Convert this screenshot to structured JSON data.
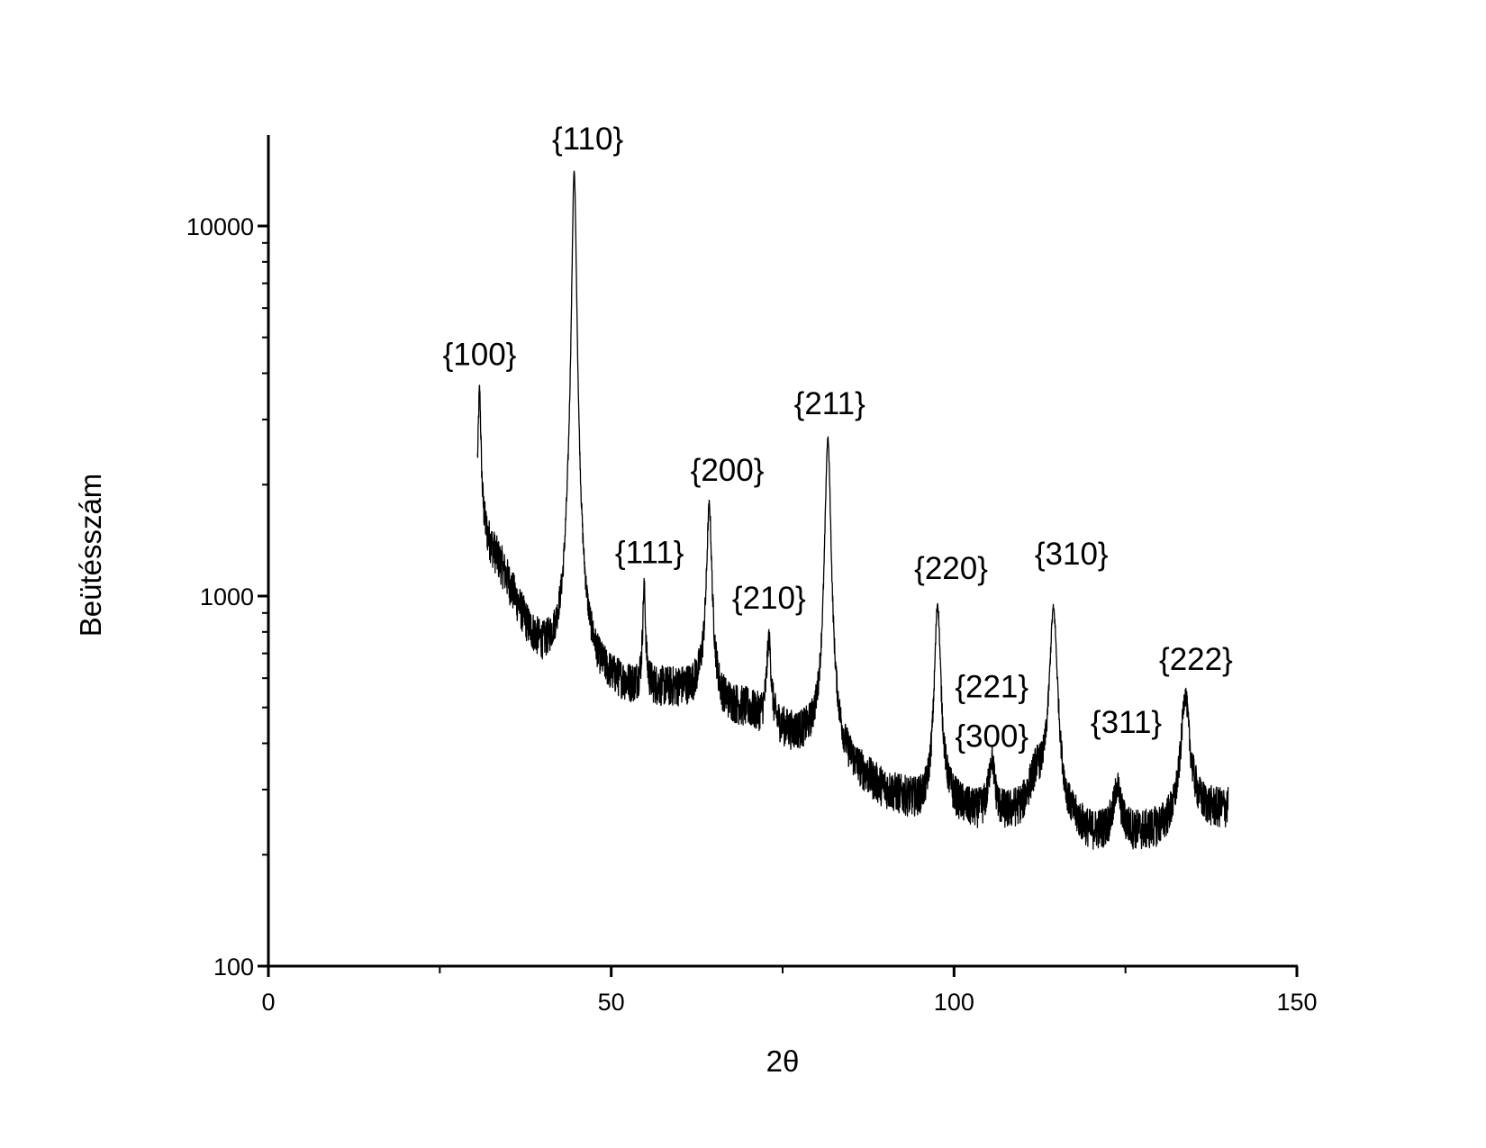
{
  "chart_data": {
    "type": "line",
    "title": "",
    "xlabel": "2θ",
    "ylabel": "Beütésszám",
    "xlim": [
      0,
      150
    ],
    "ylim": [
      100,
      16000
    ],
    "yscale": "log",
    "grid": false,
    "legend": "none",
    "line_color": "#000000",
    "x_ticks": [
      {
        "value": 0,
        "label": "0"
      },
      {
        "value": 50,
        "label": "50"
      },
      {
        "value": 100,
        "label": "100"
      },
      {
        "value": 150,
        "label": "150"
      }
    ],
    "x_minor_ticks": [
      25,
      75,
      125
    ],
    "y_ticks": [
      {
        "value": 100,
        "label": "100"
      },
      {
        "value": 1000,
        "label": "1000"
      },
      {
        "value": 10000,
        "label": "10000"
      }
    ],
    "series": [
      {
        "x": [
          30.5,
          31,
          32,
          34,
          36,
          38,
          40,
          42,
          43,
          44,
          46,
          48,
          50,
          53,
          55,
          56,
          58,
          60,
          62,
          64,
          66,
          68,
          70,
          72,
          74,
          76,
          78,
          80,
          82,
          84,
          86,
          88,
          90,
          92,
          94,
          96,
          98,
          100,
          102,
          104,
          106,
          108,
          110,
          112,
          114,
          116,
          118,
          120,
          122,
          124,
          126,
          128,
          130,
          132,
          134,
          136,
          138,
          140
        ],
        "y": [
          1650,
          1550,
          1400,
          1200,
          980,
          800,
          700,
          680,
          700,
          900,
          650,
          600,
          580,
          560,
          560,
          560,
          560,
          560,
          560,
          600,
          510,
          500,
          490,
          460,
          440,
          420,
          410,
          400,
          380,
          350,
          330,
          310,
          295,
          285,
          275,
          265,
          280,
          270,
          260,
          255,
          250,
          255,
          265,
          320,
          260,
          240,
          235,
          225,
          230,
          240,
          230,
          230,
          235,
          250,
          300,
          270,
          265,
          268
        ]
      }
    ],
    "peaks": [
      {
        "label": "{100}",
        "x": 30.8,
        "y": 3600
      },
      {
        "label": "{110}",
        "x": 44.6,
        "y": 14000
      },
      {
        "label": "{111}",
        "x": 54.8,
        "y": 1050
      },
      {
        "label": "{200}",
        "x": 64.3,
        "y": 1750
      },
      {
        "label": "{210}",
        "x": 73.0,
        "y": 760
      },
      {
        "label": "{211}",
        "x": 81.6,
        "y": 2650
      },
      {
        "label": "{220}",
        "x": 97.6,
        "y": 950
      },
      {
        "label": "{221}",
        "x": 105.5,
        "y": 360
      },
      {
        "label": "{300}",
        "x": 105.5,
        "y": 360
      },
      {
        "label": "{310}",
        "x": 114.5,
        "y": 920
      },
      {
        "label": "{311}",
        "x": 123.8,
        "y": 305
      },
      {
        "label": "{222}",
        "x": 133.7,
        "y": 540
      }
    ]
  }
}
